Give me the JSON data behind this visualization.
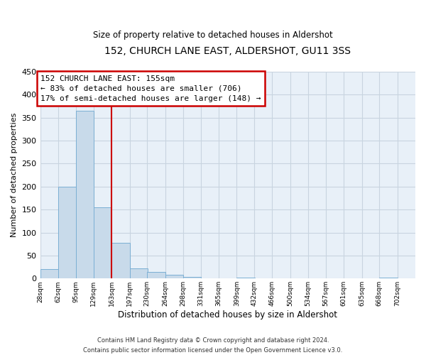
{
  "title": "152, CHURCH LANE EAST, ALDERSHOT, GU11 3SS",
  "subtitle": "Size of property relative to detached houses in Aldershot",
  "xlabel": "Distribution of detached houses by size in Aldershot",
  "ylabel": "Number of detached properties",
  "footer_lines": [
    "Contains HM Land Registry data © Crown copyright and database right 2024.",
    "Contains public sector information licensed under the Open Government Licence v3.0."
  ],
  "bin_edges": [
    28,
    62,
    95,
    129,
    163,
    197,
    230,
    264,
    298,
    331,
    365,
    399,
    432,
    466,
    500,
    534,
    567,
    601,
    635,
    668,
    702
  ],
  "bin_labels": [
    "28sqm",
    "62sqm",
    "95sqm",
    "129sqm",
    "163sqm",
    "197sqm",
    "230sqm",
    "264sqm",
    "298sqm",
    "331sqm",
    "365sqm",
    "399sqm",
    "432sqm",
    "466sqm",
    "500sqm",
    "534sqm",
    "567sqm",
    "601sqm",
    "635sqm",
    "668sqm",
    "702sqm"
  ],
  "counts": [
    20,
    200,
    365,
    155,
    78,
    22,
    15,
    8,
    3,
    0,
    0,
    2,
    0,
    0,
    0,
    0,
    0,
    0,
    0,
    2
  ],
  "bar_color": "#c8daea",
  "bar_edge_color": "#7bafd4",
  "grid_color": "#c8d4e0",
  "reference_line_x": 163,
  "reference_line_color": "#cc0000",
  "annotation_box_color": "#cc0000",
  "annotation_text_line1": "152 CHURCH LANE EAST: 155sqm",
  "annotation_text_line2": "← 83% of detached houses are smaller (706)",
  "annotation_text_line3": "17% of semi-detached houses are larger (148) →",
  "ylim": [
    0,
    450
  ],
  "yticks": [
    0,
    50,
    100,
    150,
    200,
    250,
    300,
    350,
    400,
    450
  ],
  "background_color": "#ffffff",
  "plot_bg_color": "#e8f0f8"
}
